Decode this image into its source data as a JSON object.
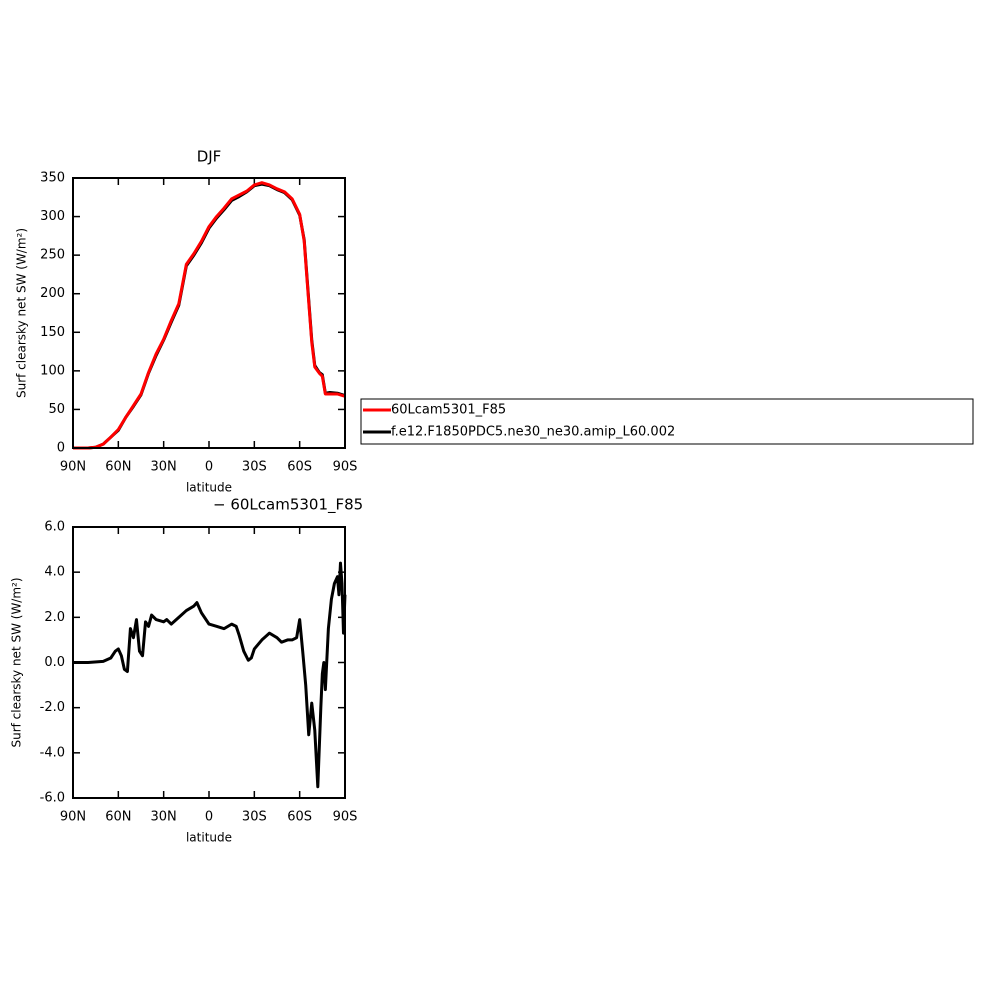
{
  "chart_data": [
    {
      "type": "line",
      "title": "DJF",
      "xlabel": "latitude",
      "ylabel": "Surf clearsky net SW (W/m²)",
      "xlim": [
        90,
        -90
      ],
      "xticks": [
        {
          "value": 90,
          "label": "90N"
        },
        {
          "value": 60,
          "label": "60N"
        },
        {
          "value": 30,
          "label": "30N"
        },
        0,
        {
          "value": -30,
          "label": "30S"
        },
        {
          "value": -60,
          "label": "60S"
        },
        {
          "value": -90,
          "label": "90S"
        }
      ],
      "ylim": [
        0,
        350
      ],
      "yticks": [
        0,
        50,
        100,
        150,
        200,
        250,
        300,
        350
      ],
      "legend_position": "right",
      "x": [
        90,
        85,
        80,
        75,
        70,
        65,
        60,
        55,
        50,
        45,
        40,
        35,
        30,
        25,
        20,
        15,
        10,
        5,
        0,
        -5,
        -10,
        -15,
        -20,
        -25,
        -30,
        -35,
        -40,
        -45,
        -50,
        -55,
        -60,
        -63,
        -65,
        -68,
        -70,
        -73,
        -75,
        -77,
        -80,
        -85,
        -90
      ],
      "series": [
        {
          "name": "60Lcam5301_F85",
          "color": "#ff0000",
          "values": [
            0,
            0,
            0,
            1,
            5,
            14,
            24,
            40,
            55,
            70,
            98,
            122,
            141,
            165,
            187,
            238,
            252,
            268,
            287,
            300,
            311,
            323,
            328,
            333,
            341,
            344,
            341,
            336,
            332,
            323,
            303,
            268,
            215,
            137,
            105,
            97,
            93,
            70,
            70,
            70,
            67
          ]
        },
        {
          "name": "f.e12.F1850PDC5.ne30_ne30.amip_L60.002",
          "color": "#000000",
          "values": [
            0,
            0,
            0,
            1,
            5,
            14,
            23,
            40,
            54,
            69,
            97,
            120,
            140,
            163,
            185,
            236,
            250,
            266,
            285,
            298,
            309,
            321,
            326,
            332,
            340,
            342,
            340,
            335,
            331,
            322,
            302,
            270,
            218,
            140,
            107,
            98,
            95,
            71,
            72,
            71,
            68
          ]
        }
      ]
    },
    {
      "type": "line",
      "title": "− 60Lcam5301_F85",
      "xlabel": "latitude",
      "ylabel": "Surf clearsky net SW (W/m²)",
      "xlim": [
        90,
        -90
      ],
      "xticks": [
        {
          "value": 90,
          "label": "90N"
        },
        {
          "value": 60,
          "label": "60N"
        },
        {
          "value": 30,
          "label": "30N"
        },
        0,
        {
          "value": -30,
          "label": "30S"
        },
        {
          "value": -60,
          "label": "60S"
        },
        {
          "value": -90,
          "label": "90S"
        }
      ],
      "ylim": [
        -6,
        6
      ],
      "yticks": [
        {
          "value": -6,
          "label": "-6.0"
        },
        {
          "value": -4,
          "label": "-4.0"
        },
        {
          "value": -2,
          "label": "-2.0"
        },
        {
          "value": 0,
          "label": "0.0"
        },
        {
          "value": 2,
          "label": "2.0"
        },
        {
          "value": 4,
          "label": "4.0"
        },
        {
          "value": 6,
          "label": "6.0"
        }
      ],
      "x": [
        90,
        80,
        70,
        65,
        62,
        60,
        58,
        56,
        54,
        52,
        50,
        48,
        46,
        44,
        42,
        40,
        38,
        35,
        30,
        28,
        25,
        20,
        15,
        10,
        8,
        5,
        0,
        -5,
        -10,
        -15,
        -18,
        -20,
        -23,
        -26,
        -28,
        -30,
        -35,
        -40,
        -45,
        -48,
        -52,
        -55,
        -58,
        -60,
        -62,
        -64,
        -66,
        -67,
        -68,
        -70,
        -72,
        -74,
        -75,
        -76,
        -77,
        -79,
        -81,
        -83,
        -85,
        -86,
        -87,
        -88,
        -89,
        -90
      ],
      "series": [
        {
          "name": null,
          "color": "#000000",
          "values": [
            0,
            0,
            0.05,
            0.2,
            0.5,
            0.6,
            0.3,
            -0.3,
            -0.4,
            1.5,
            1.1,
            1.9,
            0.5,
            0.3,
            1.8,
            1.6,
            2.1,
            1.9,
            1.8,
            1.9,
            1.7,
            2.0,
            2.3,
            2.5,
            2.65,
            2.2,
            1.7,
            1.6,
            1.5,
            1.7,
            1.6,
            1.2,
            0.5,
            0.1,
            0.2,
            0.6,
            1.0,
            1.3,
            1.1,
            0.9,
            1.0,
            1.0,
            1.1,
            1.9,
            0.5,
            -1.0,
            -3.2,
            -2.5,
            -1.8,
            -3.0,
            -5.5,
            -2.0,
            -0.5,
            0.0,
            -1.2,
            1.5,
            2.8,
            3.5,
            3.8,
            3.0,
            4.4,
            3.5,
            1.3,
            3.0
          ]
        }
      ]
    }
  ]
}
